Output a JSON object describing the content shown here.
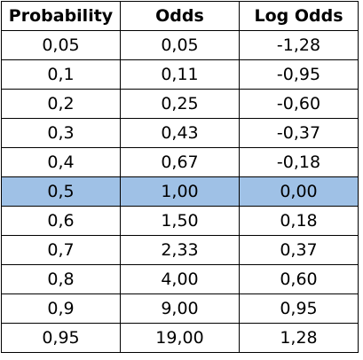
{
  "table": {
    "headers": [
      "Probability",
      "Odds",
      "Log Odds"
    ],
    "rows": [
      [
        "0,05",
        "0,05",
        "-1,28"
      ],
      [
        "0,1",
        "0,11",
        "-0,95"
      ],
      [
        "0,2",
        "0,25",
        "-0,60"
      ],
      [
        "0,3",
        "0,43",
        "-0,37"
      ],
      [
        "0,4",
        "0,67",
        "-0,18"
      ],
      [
        "0,5",
        "1,00",
        "0,00"
      ],
      [
        "0,6",
        "1,50",
        "0,18"
      ],
      [
        "0,7",
        "2,33",
        "0,37"
      ],
      [
        "0,8",
        "4,00",
        "0,60"
      ],
      [
        "0,9",
        "9,00",
        "0,95"
      ],
      [
        "0,95",
        "19,00",
        "1,28"
      ]
    ],
    "highlighted_row": 5,
    "highlight_color": "#9fc1e6",
    "border_color": "#000000"
  },
  "chart_data": {
    "type": "table",
    "columns": [
      "Probability",
      "Odds",
      "Log Odds"
    ],
    "rows": [
      [
        0.05,
        0.05,
        -1.28
      ],
      [
        0.1,
        0.11,
        -0.95
      ],
      [
        0.2,
        0.25,
        -0.6
      ],
      [
        0.3,
        0.43,
        -0.37
      ],
      [
        0.4,
        0.67,
        -0.18
      ],
      [
        0.5,
        1.0,
        0.0
      ],
      [
        0.6,
        1.5,
        0.18
      ],
      [
        0.7,
        2.33,
        0.37
      ],
      [
        0.8,
        4.0,
        0.6
      ],
      [
        0.9,
        9.0,
        0.95
      ],
      [
        0.95,
        19.0,
        1.28
      ]
    ]
  }
}
